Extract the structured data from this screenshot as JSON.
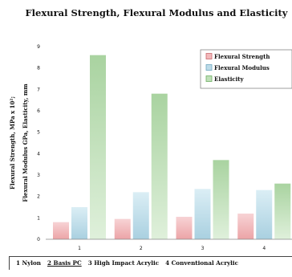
{
  "chart_data": {
    "type": "bar",
    "title": "Flexural Strength, Flexural Modulus and Elasticity",
    "ylabel": "Flexural Strength, MPa x 10²; Flexural Modulus GPa, Elasticity, mm",
    "categories": [
      "1",
      "2",
      "3",
      "4"
    ],
    "ylim": [
      0,
      9
    ],
    "yticks": [
      "0",
      "1",
      "2",
      "3",
      "4",
      "5",
      "6",
      "7",
      "8",
      "9"
    ],
    "series": [
      {
        "name": "Flexural Strength",
        "values": [
          0.8,
          0.95,
          1.05,
          1.2
        ],
        "color": "#f2b8ba"
      },
      {
        "name": "Flexural Modulus",
        "values": [
          1.5,
          2.2,
          2.35,
          2.3
        ],
        "color": "#bcdbe8"
      },
      {
        "name": "Elasticity",
        "values": [
          8.6,
          6.8,
          3.7,
          2.6
        ],
        "color": "#bfe0b8"
      }
    ],
    "legend_position": "top-right"
  },
  "footer": {
    "items": [
      {
        "text": "1 Nylon",
        "underline": false
      },
      {
        "text": "2 Basis PC",
        "underline": true
      },
      {
        "text": "3 High Impact Acrylic",
        "underline": false
      },
      {
        "text": "4 Conventional Acrylic",
        "underline": false
      }
    ]
  }
}
